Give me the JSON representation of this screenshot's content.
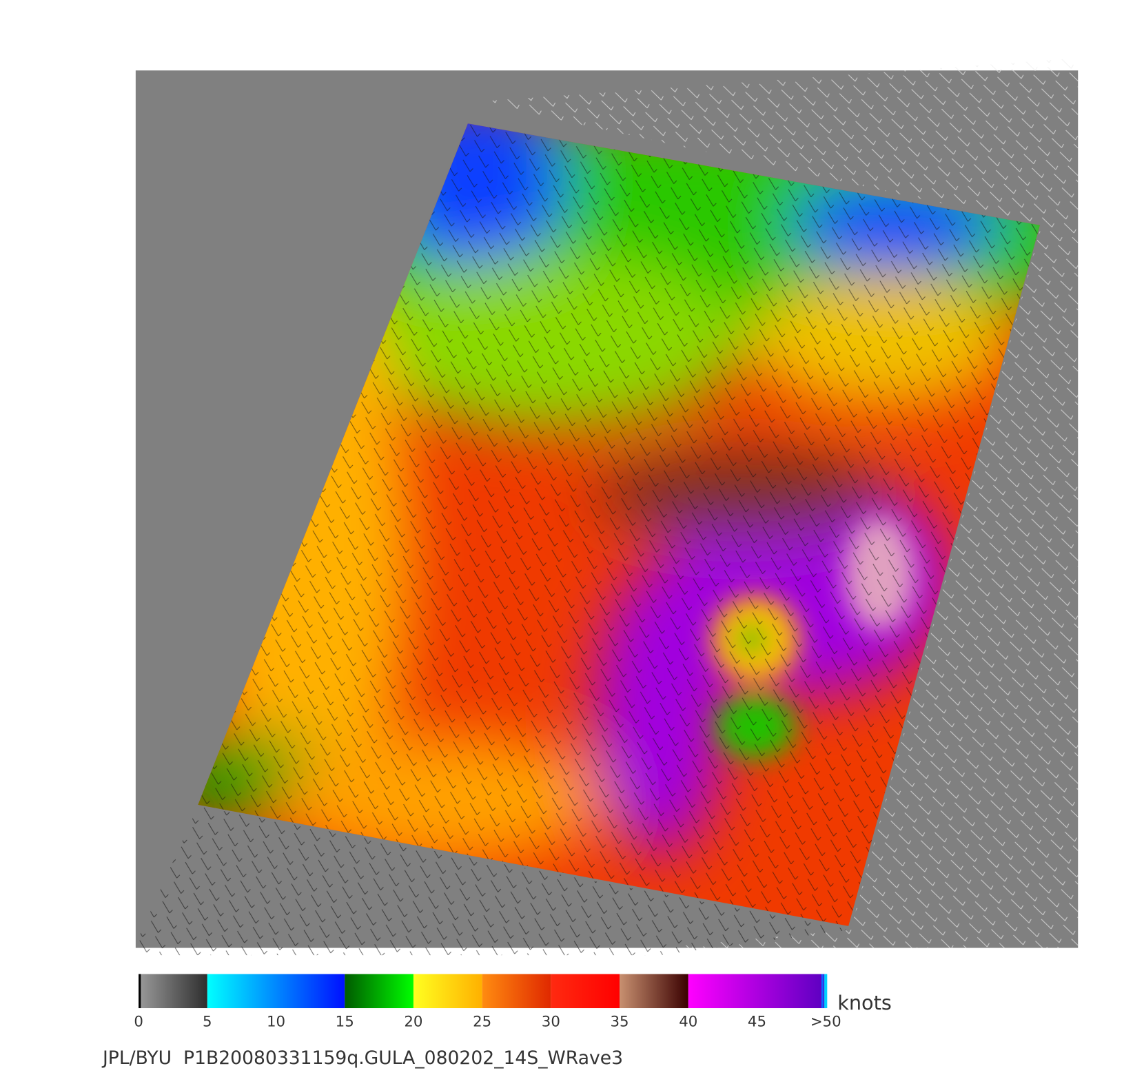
{
  "colorbar": {
    "ticks": [
      0,
      5,
      10,
      15,
      20,
      25,
      30,
      35,
      40,
      45,
      {
        "value": 50,
        "label": ">50"
      }
    ],
    "unit": "knots",
    "segments": [
      {
        "from": 0,
        "to": 5,
        "colors": [
          "#9a9a9a",
          "#2e2e2e"
        ]
      },
      {
        "from": 5,
        "to": 15,
        "colors": [
          "#00ffff",
          "#0010ff"
        ]
      },
      {
        "from": 15,
        "to": 20,
        "colors": [
          "#005a00",
          "#00ff00"
        ]
      },
      {
        "from": 20,
        "to": 25,
        "colors": [
          "#ffff20",
          "#ffb000"
        ]
      },
      {
        "from": 25,
        "to": 30,
        "colors": [
          "#ff8c10",
          "#e02800"
        ]
      },
      {
        "from": 30,
        "to": 35,
        "colors": [
          "#ff2a10",
          "#ff0000"
        ]
      },
      {
        "from": 35,
        "to": 40,
        "colors": [
          "#c89070",
          "#3a0000"
        ]
      },
      {
        "from": 40,
        "to": 50,
        "colors": [
          "#ff00ff",
          "#5a00c0"
        ]
      }
    ]
  },
  "footer": "JPL/BYU  P1B20080331159q.GULA_080202_14S_WRave3"
}
